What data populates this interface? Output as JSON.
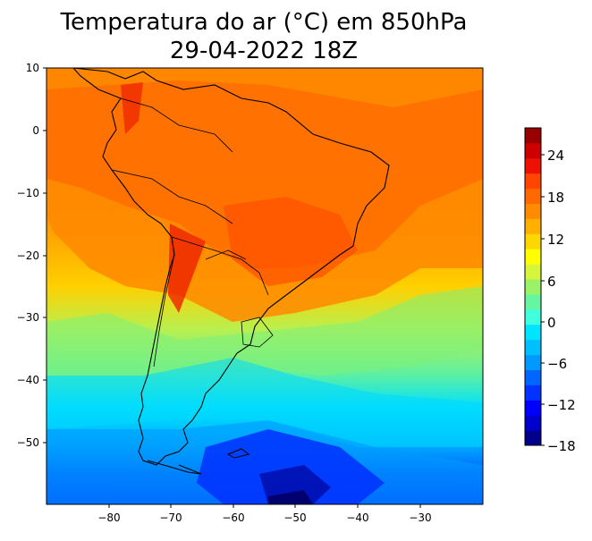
{
  "title": {
    "line1": "Temperatura do ar (°C) em 850hPa",
    "line2": "29-04-2022 18Z"
  },
  "map": {
    "x_ticks": [
      "−80",
      "−70",
      "−60",
      "−50",
      "−40",
      "−30"
    ],
    "y_ticks": [
      "10",
      "0",
      "−10",
      "−20",
      "−30",
      "−40",
      "−50"
    ],
    "lon_range": [
      -90,
      -20
    ],
    "lat_range": [
      -60,
      10
    ]
  },
  "colorbar": {
    "tick_labels": [
      "24",
      "18",
      "12",
      "6",
      "0",
      "−6",
      "−12",
      "−18"
    ],
    "colors": [
      "#00008b",
      "#0000cd",
      "#0000ff",
      "#0033ff",
      "#0066ff",
      "#0099ff",
      "#00bfff",
      "#00e5ff",
      "#40ffdf",
      "#66f5a0",
      "#9cf266",
      "#d6f53b",
      "#ffff00",
      "#ffd700",
      "#ffb000",
      "#ff8c00",
      "#ff6a00",
      "#ff4500",
      "#ee1000",
      "#cc0000",
      "#990000"
    ]
  }
}
